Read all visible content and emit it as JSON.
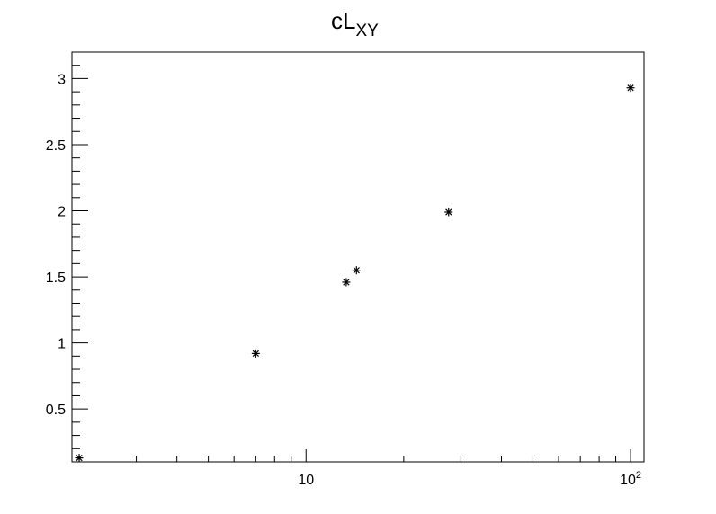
{
  "chart_data": {
    "type": "scatter",
    "title": "cL",
    "title_subscript": "XY",
    "x_scale": "log",
    "xlim": [
      1.9,
      110
    ],
    "ylim": [
      0.1,
      3.2
    ],
    "y_ticks": [
      0.5,
      1,
      1.5,
      2,
      2.5,
      3
    ],
    "y_tick_labels": [
      "0.5",
      "1",
      "1.5",
      "2",
      "2.5",
      "3"
    ],
    "x_major_ticks": [
      {
        "value": 10,
        "base": "10",
        "exp": ""
      },
      {
        "value": 100,
        "base": "10",
        "exp": "2"
      }
    ],
    "grid": false,
    "marker": "asterisk",
    "color": "#000000",
    "points": [
      {
        "x": 2,
        "y": 0.13
      },
      {
        "x": 7,
        "y": 0.92
      },
      {
        "x": 13.3,
        "y": 1.46
      },
      {
        "x": 14.3,
        "y": 1.55
      },
      {
        "x": 27.5,
        "y": 1.99
      },
      {
        "x": 100,
        "y": 2.93
      }
    ]
  }
}
